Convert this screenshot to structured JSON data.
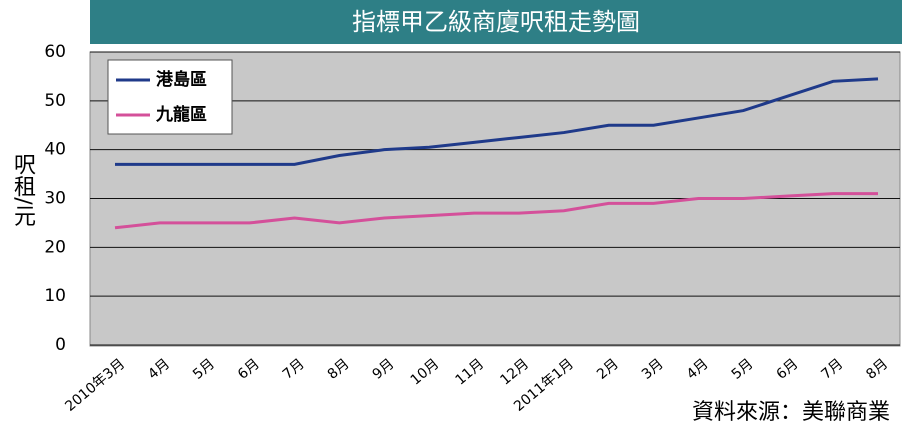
{
  "chart_data": {
    "type": "line",
    "title": "指標甲乙級商廈呎租走勢圖",
    "y_label": "呎租/元",
    "source": "資料來源：美聯商業",
    "categories": [
      "2010年3月",
      "4月",
      "5月",
      "6月",
      "7月",
      "8月",
      "9月",
      "10月",
      "11月",
      "12月",
      "2011年1月",
      "2月",
      "3月",
      "4月",
      "5月",
      "6月",
      "7月",
      "8月"
    ],
    "series": [
      {
        "name": "港島區",
        "color": "#1f3a8a",
        "values": [
          37,
          37,
          37,
          37,
          37,
          38.8,
          40,
          40.5,
          41.5,
          42.5,
          43.5,
          45,
          45,
          46.5,
          48,
          51,
          54,
          54.5
        ]
      },
      {
        "name": "九龍區",
        "color": "#d4509a",
        "values": [
          24,
          25,
          25,
          25,
          26,
          25,
          26,
          26.5,
          27,
          27,
          27.5,
          29,
          29,
          30,
          30,
          30.5,
          31,
          31
        ]
      }
    ],
    "ylim": [
      0,
      60
    ],
    "yticks": [
      0,
      10,
      20,
      30,
      40,
      50,
      60
    ],
    "grid": true,
    "legend": "top-left"
  }
}
